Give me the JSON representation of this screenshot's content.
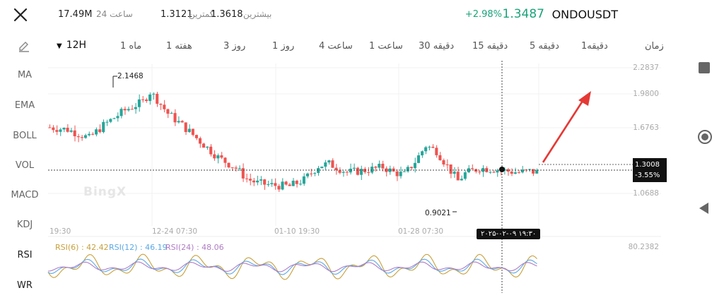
{
  "header": {
    "pair": "ONDOUSDT",
    "last_price": "1.3487",
    "change_pct": "+2.98%",
    "high_label": "بیشترین",
    "high_value": "1.3618",
    "low_label": "کمترین",
    "low_value": "1.3121",
    "volume_label": "24 ساعت",
    "volume_value": "17.49M"
  },
  "timeframes": {
    "selected": "12H",
    "items": [
      "زمان",
      "1دقیقه",
      "5 دقیقه",
      "15 دقیقه",
      "30 دقیقه",
      "1 ساعت",
      "4 ساعت",
      "1 روز",
      "3 روز",
      "1 هفته",
      "1 ماه"
    ]
  },
  "indicators": [
    "MA",
    "EMA",
    "BOLL",
    "VOL",
    "MACD",
    "KDJ"
  ],
  "sub_indicators": [
    "RSI",
    "WR"
  ],
  "watermark": "BingX",
  "price_axis": [
    "2.2837",
    "1.9800",
    "1.6763",
    "1.0688"
  ],
  "date_axis": [
    "19:30",
    "12-24 07:30",
    "01-10 19:30",
    "01-28 07:30"
  ],
  "crosshair": {
    "date": "۲۰۲۵-۰۲-۰۹ ۱۹:۳۰",
    "price": "1.3008",
    "pct": "-3.55%"
  },
  "annotations": {
    "high": "2.1468",
    "low": "0.9021"
  },
  "rsi": {
    "rsi6_label": "RSI(6) : 42.42",
    "rsi12_label": "RSI(12) : 46.19",
    "rsi24_label": "RSI(24) : 48.06",
    "axis_top": "80.2382"
  },
  "colors": {
    "up": "#26a69a",
    "down": "#ef5350",
    "arrow": "#e53935",
    "rsi6": "#c8a03c",
    "rsi12": "#5aa9e6",
    "rsi24": "#b07cc6"
  },
  "chart_data": {
    "type": "candlestick",
    "interval": "12H",
    "y_axis_ticks": [
      2.2837,
      1.98,
      1.6763,
      1.0688
    ],
    "x_axis_ticks": [
      "19:30",
      "12-24 07:30",
      "01-10 19:30",
      "01-28 07:30"
    ],
    "period_high": 2.1468,
    "period_low": 0.9021,
    "crosshair_price": 1.3008,
    "crosshair_change_pct": -3.55,
    "last_price": 1.3487,
    "rsi": {
      "rsi6": 42.42,
      "rsi12": 46.19,
      "rsi24": 48.06
    }
  }
}
